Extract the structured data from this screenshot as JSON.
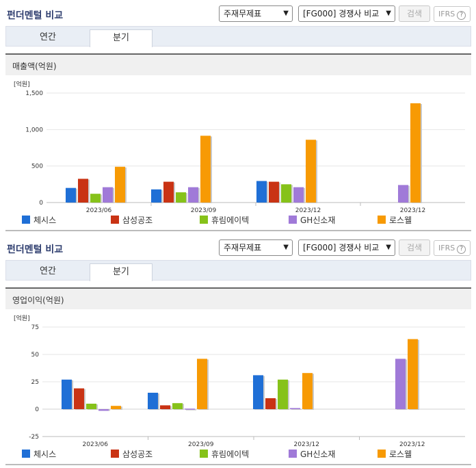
{
  "panels": [
    {
      "title": "펀더멘털 비교",
      "select1": "주재무제표",
      "select2": "[FG000] 경쟁사 비교",
      "search_label": "검색",
      "ifrs_label": "IFRS",
      "tabs": [
        {
          "label": "연간",
          "active": false
        },
        {
          "label": "분기",
          "active": true
        }
      ],
      "section_title": "매출액(억원)"
    },
    {
      "title": "펀더멘털 비교",
      "select1": "주재무제표",
      "select2": "[FG000] 경쟁사 비교",
      "search_label": "검색",
      "ifrs_label": "IFRS",
      "tabs": [
        {
          "label": "연간",
          "active": false
        },
        {
          "label": "분기",
          "active": true
        }
      ],
      "section_title": "영업이익(억원)"
    }
  ],
  "legend": [
    {
      "name": "체시스",
      "color": "#1f6fd6"
    },
    {
      "name": "삼성공조",
      "color": "#c93314"
    },
    {
      "name": "휴림에이텍",
      "color": "#86c21a"
    },
    {
      "name": "GH신소재",
      "color": "#a07ad8"
    },
    {
      "name": "로스웰",
      "color": "#f79a04"
    }
  ],
  "chart_data": [
    {
      "type": "bar",
      "unit_label": "[억원]",
      "categories": [
        "2023/06",
        "2023/09",
        "2023/12",
        "2023/12"
      ],
      "ylim": [
        0,
        1500
      ],
      "yticks": [
        "0",
        "500",
        "1,000",
        "1,500"
      ],
      "ytick_values": [
        0,
        500,
        1000,
        1500
      ],
      "series": [
        {
          "name": "체시스",
          "values": [
            200,
            180,
            295,
            null
          ]
        },
        {
          "name": "삼성공조",
          "values": [
            325,
            285,
            285,
            null
          ]
        },
        {
          "name": "휴림에이텍",
          "values": [
            120,
            140,
            250,
            null
          ]
        },
        {
          "name": "GH신소재",
          "values": [
            210,
            210,
            210,
            240
          ]
        },
        {
          "name": "로스웰",
          "values": [
            490,
            915,
            860,
            1360
          ]
        }
      ]
    },
    {
      "type": "bar",
      "unit_label": "[억원]",
      "categories": [
        "2023/06",
        "2023/09",
        "2023/12",
        "2023/12"
      ],
      "ylim": [
        -25,
        75
      ],
      "yticks": [
        "-25",
        "0",
        "25",
        "50",
        "75"
      ],
      "ytick_values": [
        -25,
        0,
        25,
        50,
        75
      ],
      "series": [
        {
          "name": "체시스",
          "values": [
            27,
            15,
            31,
            null
          ]
        },
        {
          "name": "삼성공조",
          "values": [
            19,
            3.5,
            10,
            null
          ]
        },
        {
          "name": "휴림에이텍",
          "values": [
            5,
            5.5,
            27,
            null
          ]
        },
        {
          "name": "GH신소재",
          "values": [
            -1.5,
            0.5,
            1,
            46
          ]
        },
        {
          "name": "로스웰",
          "values": [
            3,
            46,
            33,
            64
          ]
        }
      ]
    }
  ]
}
